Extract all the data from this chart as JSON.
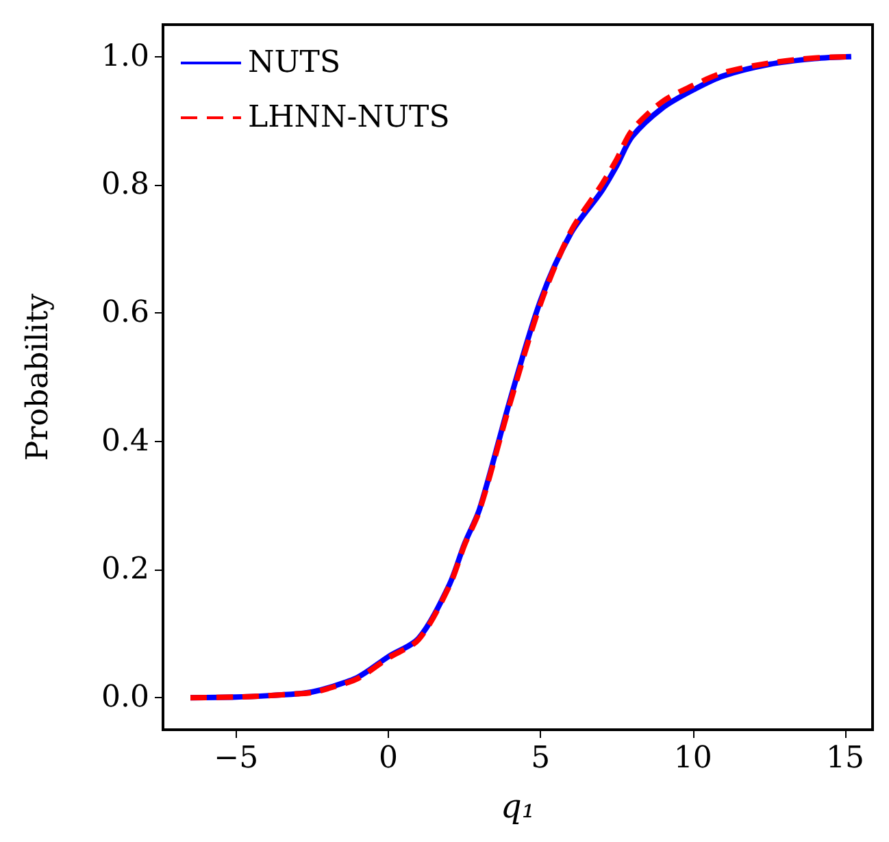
{
  "chart_data": {
    "type": "line",
    "xlabel": "q₁",
    "ylabel": "Probability",
    "xlim": [
      -7.4,
      15.9
    ],
    "ylim": [
      -0.05,
      1.05
    ],
    "xticks": [
      {
        "value": -5,
        "label": "−5"
      },
      0,
      5,
      10,
      15
    ],
    "yticks": [
      {
        "value": 0,
        "label": "0.0"
      },
      0.2,
      0.4,
      0.6,
      0.8,
      {
        "value": 1,
        "label": "1.0"
      }
    ],
    "grid": false,
    "legend": "top left",
    "series": [
      {
        "name": "NUTS",
        "color": "#0000ff",
        "line_style": "solid",
        "x": [
          -6.5,
          -5,
          -4,
          -3,
          -2.5,
          -2,
          -1,
          0,
          1,
          2,
          2.5,
          3,
          4,
          5,
          6,
          7,
          7.5,
          8,
          9,
          10,
          11,
          12.5,
          14,
          15.2
        ],
        "values": [
          0,
          0.001,
          0.003,
          0.006,
          0.009,
          0.015,
          0.032,
          0.064,
          0.093,
          0.176,
          0.24,
          0.295,
          0.465,
          0.62,
          0.725,
          0.79,
          0.83,
          0.875,
          0.92,
          0.948,
          0.97,
          0.988,
          0.997,
          1
        ]
      },
      {
        "name": "LHNN-NUTS",
        "color": "#ff0000",
        "line_style": "dashed",
        "x": [
          -6.5,
          -5,
          -4,
          -3,
          -2.5,
          -2,
          -1,
          0,
          1,
          2,
          2.5,
          3,
          4,
          5,
          6,
          7,
          7.5,
          8,
          9,
          10,
          11,
          12.5,
          14,
          15.2
        ],
        "values": [
          0,
          0.001,
          0.003,
          0.006,
          0.008,
          0.014,
          0.03,
          0.062,
          0.091,
          0.174,
          0.238,
          0.293,
          0.46,
          0.615,
          0.728,
          0.8,
          0.84,
          0.885,
          0.93,
          0.955,
          0.975,
          0.99,
          0.998,
          1
        ]
      }
    ]
  }
}
